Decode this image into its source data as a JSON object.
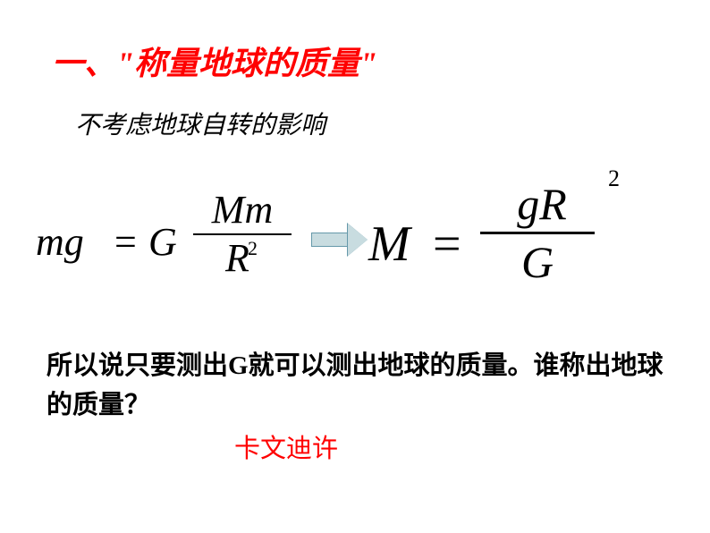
{
  "title": "一、\"称量地球的质量\"",
  "subtitle": "不考虑地球自转的影响",
  "formula_left": {
    "lhs_1": "m",
    "lhs_2": "g",
    "eq": "=",
    "coef": "G",
    "num_1": "M",
    "num_2": "m",
    "den_base": "R",
    "den_exp": "2"
  },
  "formula_right": {
    "lhs": "M",
    "eq": "=",
    "num_g": "g",
    "num_R": "R",
    "num_exp": "2",
    "den": "G"
  },
  "arrow": {
    "fill": "#c8dce0",
    "stroke": "#6699aa"
  },
  "body_text": "所以说只要测出G就可以测出地球的质量。谁称出地球的质量？",
  "answer": "卡文迪许",
  "colors": {
    "title": "#ff0000",
    "text": "#000000",
    "answer": "#ff0000",
    "background": "#ffffff"
  },
  "typography": {
    "title_fontsize": 36,
    "subtitle_fontsize": 28,
    "formula_left_fontsize": 44,
    "formula_right_fontsize": 54,
    "body_fontsize": 29,
    "answer_fontsize": 29
  }
}
